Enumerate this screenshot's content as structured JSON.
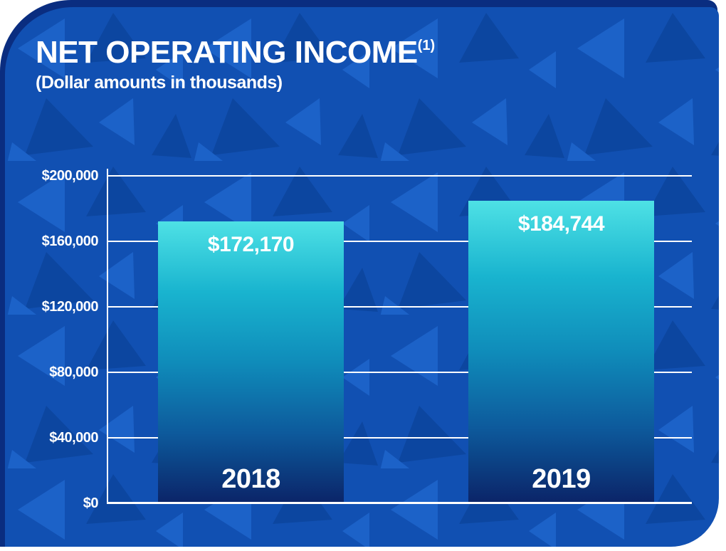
{
  "header": {
    "title": "NET OPERATING INCOME",
    "superscript": "(1)",
    "subtitle": "(Dollar amounts in thousands)"
  },
  "colors": {
    "page_bg": "#ffffff",
    "navy_backdrop": "#0a2d80",
    "card_bg": "#1150b2",
    "triangle_light": "#1c62c8",
    "triangle_dark": "#0c46a0",
    "grid_line": "#ffffff",
    "text": "#ffffff"
  },
  "chart_data": {
    "type": "bar",
    "title": "NET OPERATING INCOME(1)",
    "subtitle": "(Dollar amounts in thousands)",
    "categories": [
      "2018",
      "2019"
    ],
    "values": [
      172170,
      184744
    ],
    "value_labels": [
      "$172,170",
      "$184,744"
    ],
    "xlabel": "",
    "ylabel": "",
    "ylim": [
      0,
      200000
    ],
    "ytick_step": 40000,
    "ytick_labels": [
      "$0",
      "$40,000",
      "$80,000",
      "$120,000",
      "$160,000",
      "$200,000"
    ],
    "grid": true,
    "legend": false,
    "bar_gradient": [
      "#4ee1e5",
      "#19b4cf",
      "#0f8cba",
      "#0d5a9c",
      "#0b2468"
    ],
    "bar_label_color": "#ffffff"
  }
}
